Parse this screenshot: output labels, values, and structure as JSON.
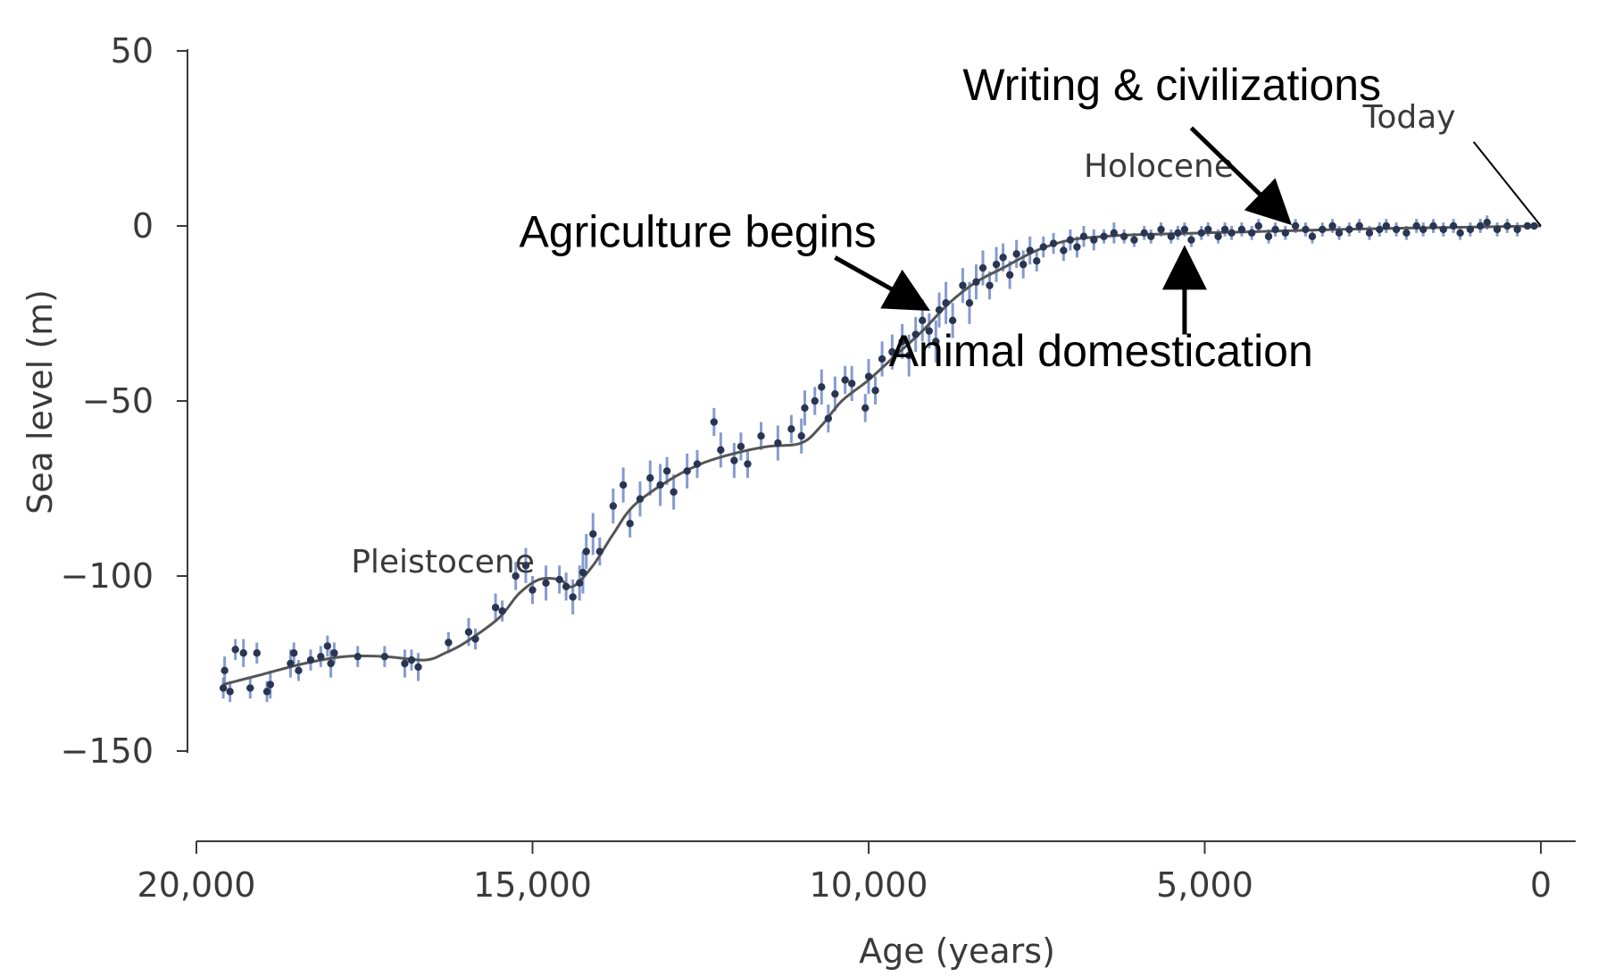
{
  "chart_data": {
    "type": "scatter",
    "title": "",
    "xlabel": "Age (years)",
    "ylabel": "Sea level (m)",
    "xlim": [
      20000,
      0
    ],
    "ylim": [
      -150,
      50
    ],
    "x_ticks": [
      20000,
      15000,
      10000,
      5000,
      0
    ],
    "x_tick_labels": [
      "20,000",
      "15,000",
      "10,000",
      "5,000",
      "0"
    ],
    "y_ticks": [
      50,
      0,
      -50,
      -100,
      -150
    ],
    "y_tick_labels": [
      "50",
      "0",
      "−50",
      "−100",
      "−150"
    ],
    "grid": false,
    "series": [
      {
        "kind": "fit-curve",
        "color": "#555555",
        "points": [
          [
            19600,
            -131
          ],
          [
            19000,
            -128
          ],
          [
            18400,
            -125
          ],
          [
            17800,
            -123
          ],
          [
            17200,
            -123
          ],
          [
            16600,
            -124
          ],
          [
            16300,
            -122
          ],
          [
            16000,
            -119
          ],
          [
            15500,
            -112
          ],
          [
            15200,
            -105
          ],
          [
            14900,
            -101
          ],
          [
            14600,
            -101
          ],
          [
            14400,
            -103
          ],
          [
            14100,
            -97
          ],
          [
            13800,
            -88
          ],
          [
            13500,
            -80
          ],
          [
            13000,
            -73
          ],
          [
            12500,
            -68
          ],
          [
            12000,
            -65
          ],
          [
            11500,
            -63
          ],
          [
            11000,
            -62
          ],
          [
            10700,
            -57
          ],
          [
            10400,
            -50
          ],
          [
            10000,
            -44
          ],
          [
            9600,
            -37
          ],
          [
            9200,
            -30
          ],
          [
            8800,
            -22
          ],
          [
            8400,
            -16
          ],
          [
            8000,
            -12
          ],
          [
            7500,
            -7
          ],
          [
            7000,
            -4
          ],
          [
            6500,
            -3
          ],
          [
            6000,
            -2.5
          ],
          [
            5000,
            -2
          ],
          [
            4000,
            -1.5
          ],
          [
            3000,
            -1
          ],
          [
            2000,
            -0.6
          ],
          [
            1000,
            -0.3
          ],
          [
            0,
            0
          ]
        ]
      },
      {
        "kind": "observations",
        "color": "#2a3552",
        "error_color": "#6f8ac7",
        "points": [
          [
            19600,
            -132,
            3
          ],
          [
            19580,
            -127,
            4
          ],
          [
            19500,
            -133,
            3
          ],
          [
            19420,
            -121,
            3
          ],
          [
            19300,
            -122,
            4
          ],
          [
            19200,
            -132,
            3
          ],
          [
            19100,
            -122,
            3
          ],
          [
            18950,
            -133,
            3
          ],
          [
            18900,
            -131,
            4
          ],
          [
            18600,
            -125,
            4
          ],
          [
            18550,
            -122,
            3
          ],
          [
            18480,
            -127,
            3
          ],
          [
            18300,
            -124,
            3
          ],
          [
            18150,
            -123,
            3
          ],
          [
            18050,
            -120,
            3
          ],
          [
            18000,
            -125,
            4
          ],
          [
            17950,
            -122,
            3
          ],
          [
            17600,
            -123,
            3
          ],
          [
            17200,
            -123,
            3
          ],
          [
            16900,
            -125,
            4
          ],
          [
            16800,
            -124,
            3
          ],
          [
            16700,
            -126,
            4
          ],
          [
            16250,
            -119,
            3
          ],
          [
            15950,
            -116,
            4
          ],
          [
            15850,
            -118,
            3
          ],
          [
            15550,
            -109,
            4
          ],
          [
            15450,
            -110,
            3
          ],
          [
            15250,
            -100,
            4
          ],
          [
            15100,
            -97,
            5
          ],
          [
            15000,
            -104,
            4
          ],
          [
            14800,
            -102,
            5
          ],
          [
            14600,
            -101,
            4
          ],
          [
            14500,
            -103,
            4
          ],
          [
            14400,
            -106,
            5
          ],
          [
            14300,
            -102,
            5
          ],
          [
            14250,
            -99,
            6
          ],
          [
            14200,
            -93,
            5
          ],
          [
            14100,
            -88,
            6
          ],
          [
            14000,
            -93,
            4
          ],
          [
            13800,
            -80,
            5
          ],
          [
            13650,
            -74,
            5
          ],
          [
            13550,
            -85,
            4
          ],
          [
            13400,
            -78,
            5
          ],
          [
            13250,
            -72,
            5
          ],
          [
            13100,
            -74,
            6
          ],
          [
            13000,
            -70,
            4
          ],
          [
            12900,
            -76,
            5
          ],
          [
            12700,
            -70,
            5
          ],
          [
            12550,
            -68,
            4
          ],
          [
            12300,
            -56,
            4
          ],
          [
            12200,
            -64,
            5
          ],
          [
            12000,
            -67,
            5
          ],
          [
            11900,
            -63,
            4
          ],
          [
            11800,
            -68,
            4
          ],
          [
            11600,
            -60,
            4
          ],
          [
            11350,
            -62,
            5
          ],
          [
            11150,
            -58,
            4
          ],
          [
            11000,
            -60,
            5
          ],
          [
            10950,
            -52,
            5
          ],
          [
            10800,
            -50,
            4
          ],
          [
            10700,
            -46,
            5
          ],
          [
            10600,
            -55,
            4
          ],
          [
            10500,
            -48,
            5
          ],
          [
            10350,
            -44,
            4
          ],
          [
            10250,
            -45,
            5
          ],
          [
            10050,
            -52,
            4
          ],
          [
            10000,
            -43,
            5
          ],
          [
            9900,
            -47,
            4
          ],
          [
            9800,
            -38,
            5
          ],
          [
            9650,
            -36,
            5
          ],
          [
            9500,
            -33,
            5
          ],
          [
            9400,
            -37,
            6
          ],
          [
            9300,
            -31,
            5
          ],
          [
            9200,
            -27,
            6
          ],
          [
            9100,
            -30,
            5
          ],
          [
            9000,
            -33,
            6
          ],
          [
            8950,
            -24,
            5
          ],
          [
            8850,
            -22,
            6
          ],
          [
            8750,
            -27,
            5
          ],
          [
            8600,
            -17,
            5
          ],
          [
            8500,
            -22,
            6
          ],
          [
            8400,
            -16,
            5
          ],
          [
            8300,
            -12,
            5
          ],
          [
            8200,
            -17,
            4
          ],
          [
            8100,
            -11,
            5
          ],
          [
            8000,
            -9,
            4
          ],
          [
            7900,
            -14,
            4
          ],
          [
            7800,
            -8,
            4
          ],
          [
            7700,
            -11,
            4
          ],
          [
            7600,
            -7,
            4
          ],
          [
            7500,
            -10,
            3
          ],
          [
            7400,
            -6,
            3
          ],
          [
            7250,
            -5,
            3
          ],
          [
            7100,
            -7,
            3
          ],
          [
            7000,
            -4,
            3
          ],
          [
            6900,
            -6,
            3
          ],
          [
            6800,
            -3,
            3
          ],
          [
            6650,
            -4,
            3
          ],
          [
            6500,
            -3,
            2
          ],
          [
            6350,
            -2,
            3
          ],
          [
            6200,
            -3,
            2
          ],
          [
            6050,
            -4,
            2
          ],
          [
            5900,
            -2,
            2
          ],
          [
            5800,
            -3,
            2
          ],
          [
            5650,
            -1,
            2
          ],
          [
            5500,
            -3,
            2
          ],
          [
            5400,
            -2,
            2
          ],
          [
            5300,
            -1,
            2
          ],
          [
            5200,
            -4,
            2
          ],
          [
            5050,
            -2,
            2
          ],
          [
            4950,
            -1,
            2
          ],
          [
            4800,
            -3,
            2
          ],
          [
            4700,
            -1,
            2
          ],
          [
            4600,
            -2,
            2
          ],
          [
            4450,
            -1,
            2
          ],
          [
            4300,
            -2,
            2
          ],
          [
            4200,
            0,
            2
          ],
          [
            4050,
            -3,
            2
          ],
          [
            3950,
            -1,
            2
          ],
          [
            3800,
            -2,
            2
          ],
          [
            3650,
            0,
            2
          ],
          [
            3500,
            -1,
            2
          ],
          [
            3400,
            -3,
            2
          ],
          [
            3250,
            -1,
            2
          ],
          [
            3100,
            0,
            2
          ],
          [
            3000,
            -2,
            2
          ],
          [
            2850,
            -1,
            2
          ],
          [
            2700,
            0,
            2
          ],
          [
            2550,
            -2,
            2
          ],
          [
            2400,
            -1,
            2
          ],
          [
            2300,
            0,
            2
          ],
          [
            2150,
            -1,
            2
          ],
          [
            2000,
            -2,
            2
          ],
          [
            1850,
            0,
            2
          ],
          [
            1750,
            -1,
            2
          ],
          [
            1600,
            0,
            2
          ],
          [
            1450,
            -1,
            2
          ],
          [
            1300,
            0,
            2
          ],
          [
            1200,
            -2,
            2
          ],
          [
            1050,
            -1,
            2
          ],
          [
            900,
            0,
            2
          ],
          [
            800,
            1,
            2
          ],
          [
            650,
            -1,
            2
          ],
          [
            500,
            0,
            2
          ],
          [
            350,
            -1,
            2
          ],
          [
            200,
            0,
            1
          ],
          [
            100,
            0,
            1
          ]
        ]
      }
    ],
    "era_labels": [
      {
        "text": "Pleistocene",
        "x": 17700,
        "y": -99
      },
      {
        "text": "Holocene",
        "x": 6800,
        "y": 14
      }
    ],
    "annotations": [
      {
        "text": "Writing & civilizations",
        "x": 8600,
        "y": 36,
        "arrow_from": [
          5200,
          28
        ],
        "arrow_to": [
          3800,
          2
        ]
      },
      {
        "text": "Agriculture begins",
        "x": 15200,
        "y": -6,
        "arrow_from": [
          10500,
          -9
        ],
        "arrow_to": [
          9200,
          -23
        ]
      },
      {
        "text": "Animal domestication",
        "x": 9700,
        "y": -40,
        "arrow_from": [
          5300,
          -31
        ],
        "arrow_to": [
          5300,
          -8
        ]
      },
      {
        "text": "Today",
        "x": 2650,
        "y": 28,
        "line_from": [
          1000,
          24
        ],
        "line_to": [
          0,
          0
        ]
      }
    ]
  }
}
